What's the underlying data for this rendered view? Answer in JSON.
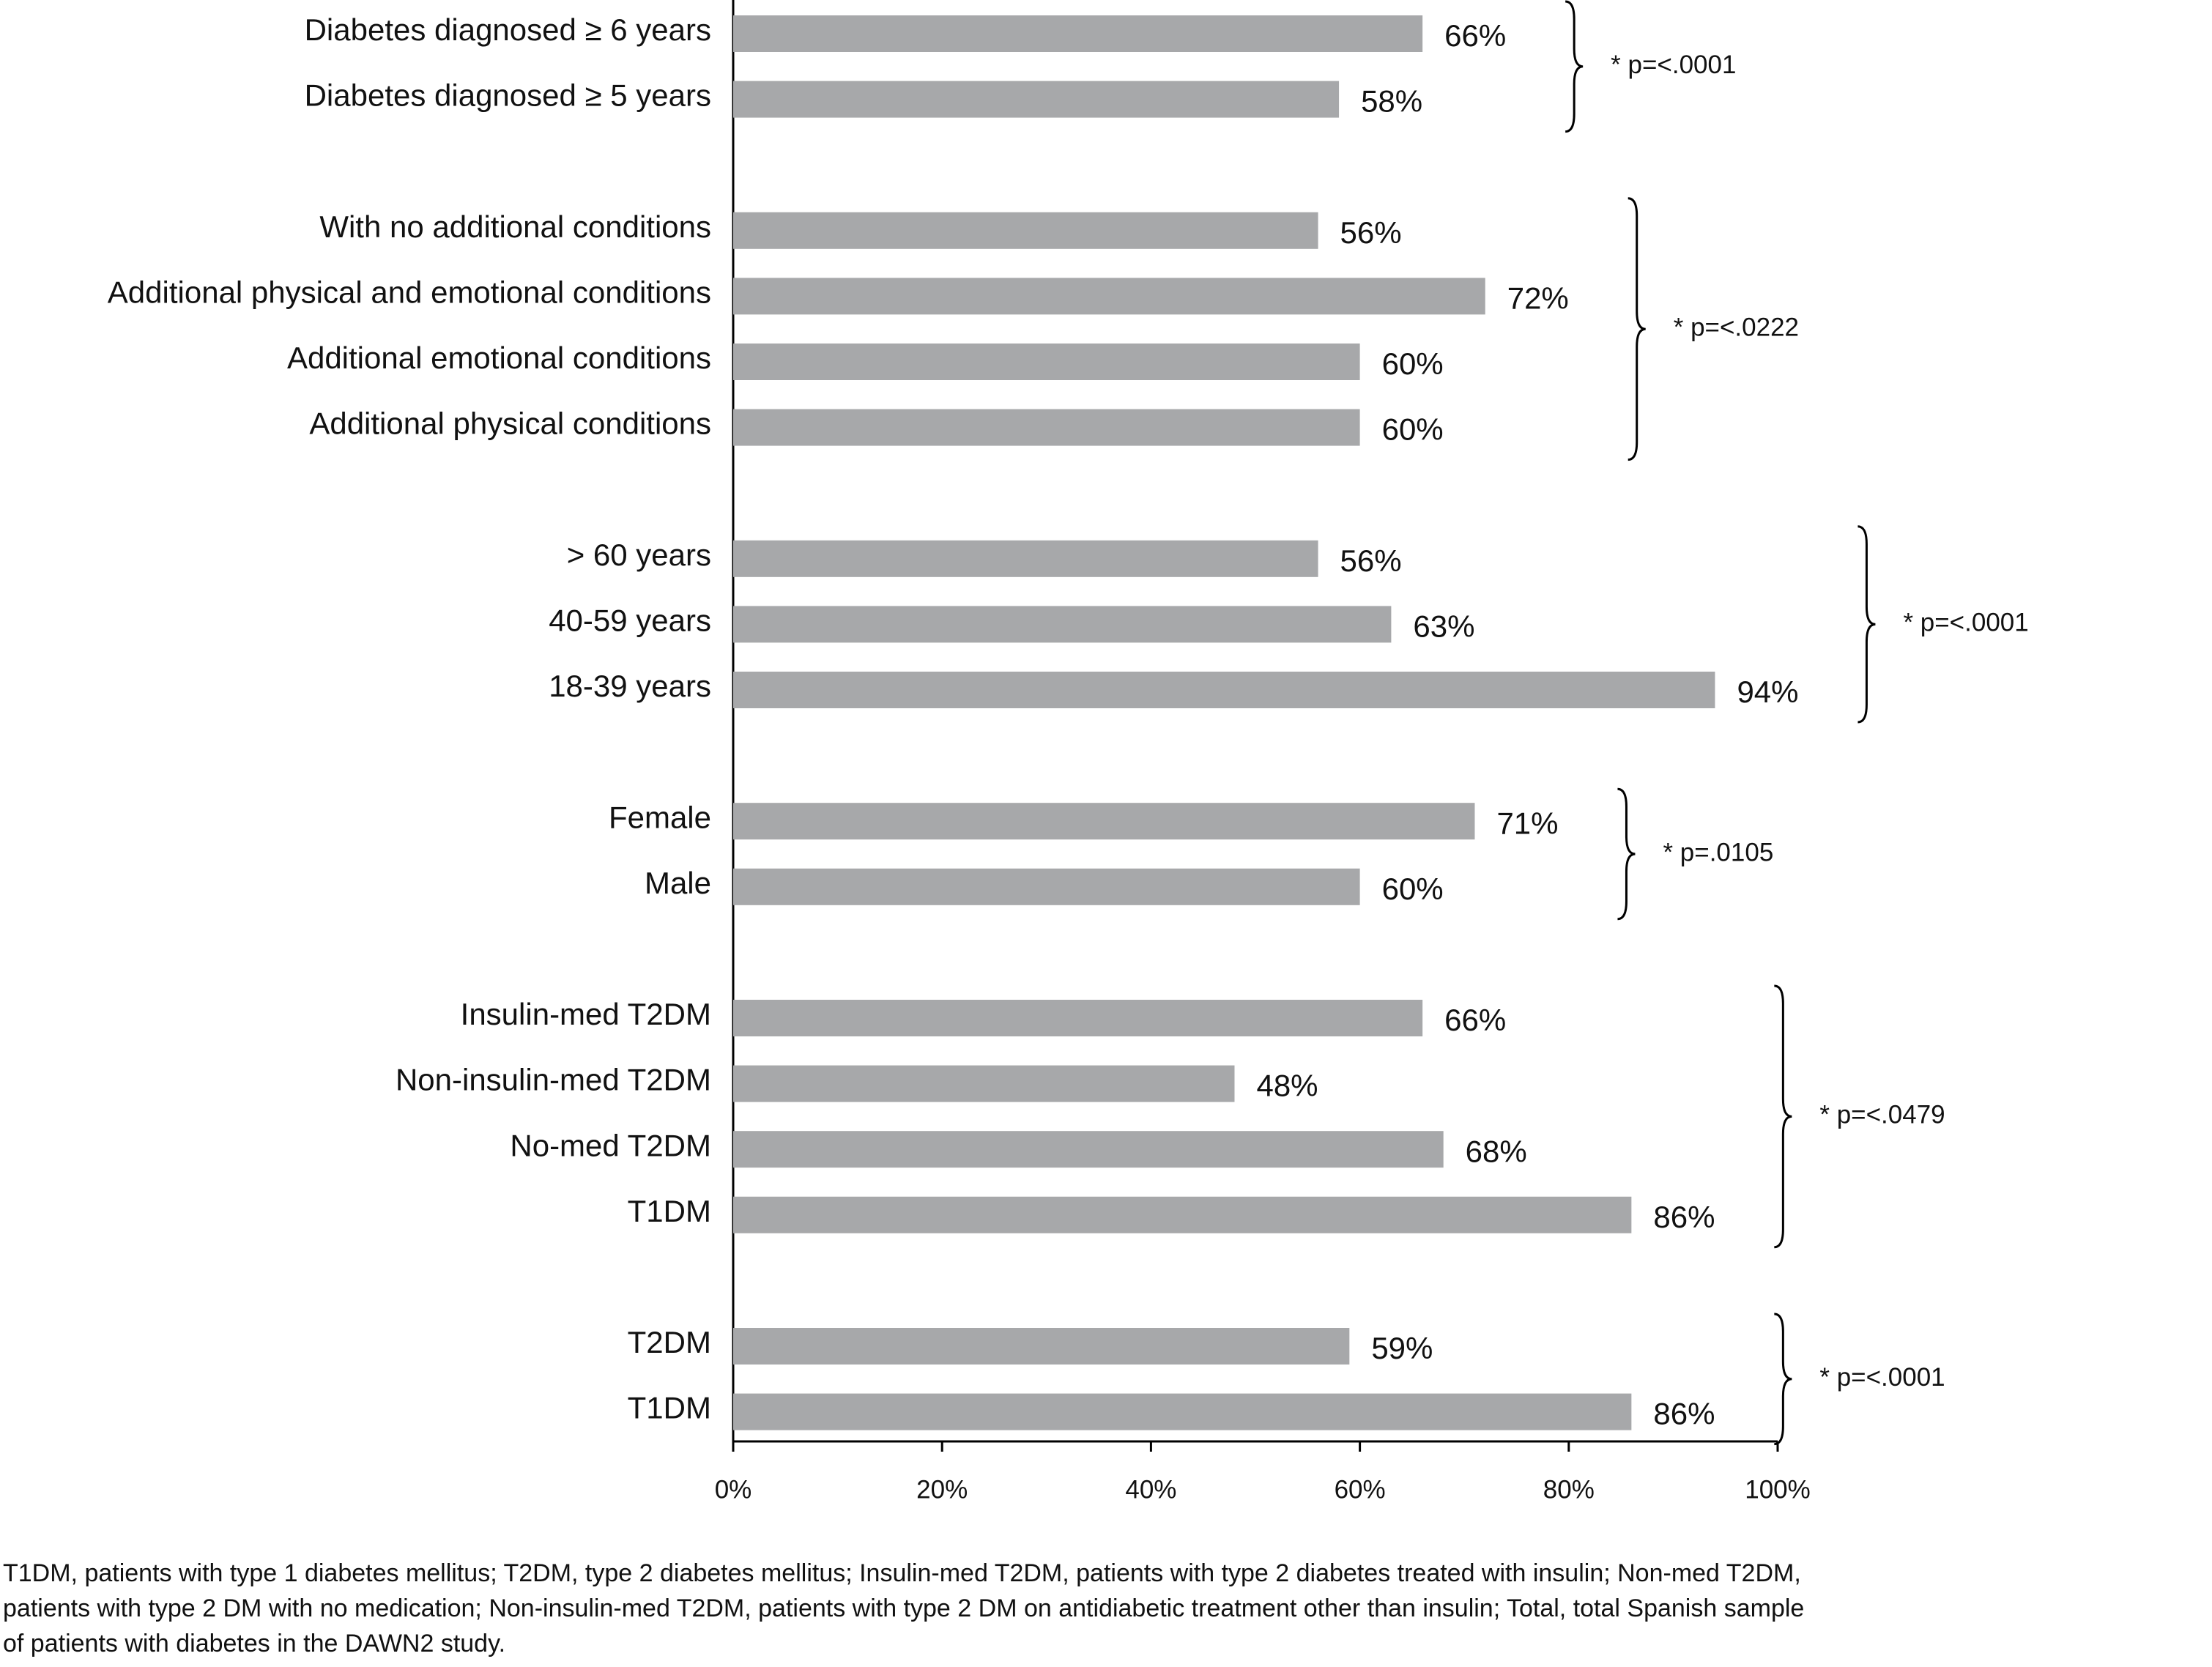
{
  "chart_data": {
    "type": "bar",
    "orientation": "horizontal",
    "color": "#a7a8aa",
    "groups": [
      {
        "categories": [
          "Diabetes diagnosed ≥ 6 years",
          "Diabetes diagnosed ≥ 5 years"
        ],
        "values": [
          66,
          58
        ],
        "value_labels": [
          "66%",
          "58%"
        ],
        "note": "* p=<.0001"
      },
      {
        "categories": [
          "With no additional conditions",
          "Additional physical and emotional conditions",
          "Additional emotional conditions",
          "Additional physical conditions"
        ],
        "values": [
          56,
          72,
          60,
          60
        ],
        "value_labels": [
          "56%",
          "72%",
          "60%",
          "60%"
        ],
        "note": "* p=<.0222"
      },
      {
        "categories": [
          "> 60 years",
          "40-59 years",
          "18-39 years"
        ],
        "values": [
          56,
          63,
          94
        ],
        "value_labels": [
          "56%",
          "63%",
          "94%"
        ],
        "note": "* p=<.0001"
      },
      {
        "categories": [
          "Female",
          "Male"
        ],
        "values": [
          71,
          60
        ],
        "value_labels": [
          "71%",
          "60%"
        ],
        "note": "* p=.0105"
      },
      {
        "categories": [
          "Insulin-med T2DM",
          "Non-insulin-med T2DM",
          "No-med T2DM",
          "T1DM"
        ],
        "values": [
          66,
          48,
          68,
          86
        ],
        "value_labels": [
          "66%",
          "48%",
          "68%",
          "86%"
        ],
        "note": "* p=<.0479"
      },
      {
        "categories": [
          "T2DM",
          "T1DM"
        ],
        "values": [
          59,
          86
        ],
        "value_labels": [
          "59%",
          "86%"
        ],
        "note": "* p=<.0001"
      }
    ],
    "xlim": [
      0,
      100
    ],
    "xticks": [
      {
        "value": 0,
        "label": "0%"
      },
      {
        "value": 20,
        "label": "20%"
      },
      {
        "value": 40,
        "label": "40%"
      },
      {
        "value": 60,
        "label": "60%"
      },
      {
        "value": 80,
        "label": "80%"
      },
      {
        "value": 100,
        "label": "100%"
      }
    ],
    "caption": [
      "T1DM, patients with type 1 diabetes mellitus; T2DM, type 2 diabetes mellitus; Insulin-med T2DM, patients with type 2 diabetes treated with insulin; Non-med T2DM,",
      "patients with type 2 DM with no medication; Non-insulin-med T2DM, patients with type 2 DM on antidiabetic treatment other than insulin; Total, total Spanish sample",
      "of patients with diabetes in the DAWN2 study."
    ]
  }
}
